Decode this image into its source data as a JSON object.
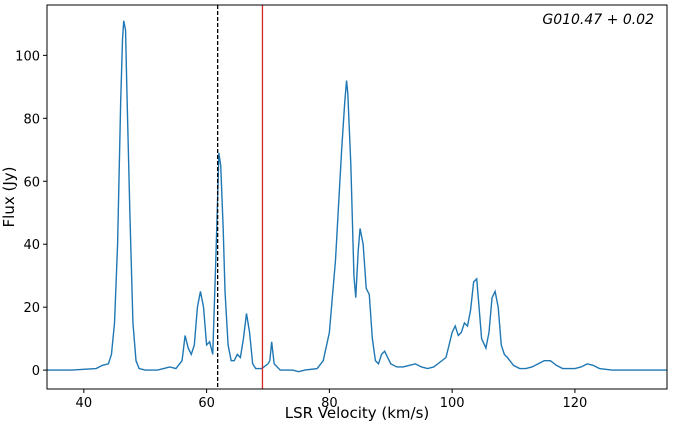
{
  "chart_data": {
    "type": "line",
    "xlabel": "LSR Velocity (km/s)",
    "ylabel": "Flux (Jy)",
    "annotation": "G010.47 + 0.02",
    "xlim": [
      34,
      135
    ],
    "ylim": [
      -6,
      116
    ],
    "xticks": [
      40,
      60,
      80,
      100,
      120
    ],
    "yticks": [
      0,
      20,
      40,
      60,
      80,
      100
    ],
    "grid": false,
    "vlines": [
      {
        "x": 61.8,
        "color": "#000000",
        "dash": true
      },
      {
        "x": 69.1,
        "color": "#d62728",
        "dash": false
      }
    ],
    "series": [
      {
        "color": "#1f77b4",
        "x": [
          34,
          38,
          42,
          43,
          44,
          44.5,
          45,
          45.5,
          46,
          46.3,
          46.5,
          46.8,
          47,
          47.5,
          48,
          48.5,
          49,
          50,
          52,
          53,
          54,
          55,
          56,
          56.5,
          57,
          57.5,
          58,
          58.5,
          59,
          59.5,
          60,
          60.5,
          61,
          61.5,
          61.8,
          62,
          62.3,
          62.7,
          63,
          63.5,
          64,
          64.5,
          65,
          65.5,
          66,
          66.5,
          67,
          67.5,
          68,
          69,
          70,
          70.3,
          70.6,
          71,
          72,
          74,
          75,
          76,
          78,
          79,
          80,
          81,
          82,
          82.5,
          82.8,
          83,
          83.5,
          84,
          84.3,
          84.7,
          85,
          85.5,
          86,
          86.5,
          87,
          87.5,
          88,
          88.5,
          89,
          89.5,
          90,
          91,
          92,
          93,
          94,
          95,
          96,
          97,
          98,
          99,
          100,
          100.5,
          101,
          101.5,
          102,
          102.5,
          103,
          103.5,
          104,
          104.3,
          104.8,
          105.5,
          106,
          106.5,
          107,
          107.5,
          108,
          108.5,
          109,
          110,
          111,
          112,
          113,
          114,
          115,
          116,
          117,
          118,
          119,
          120,
          121,
          122,
          123,
          124,
          126,
          130,
          135
        ],
        "values": [
          0,
          0,
          0.5,
          1.5,
          2,
          5,
          15,
          40,
          85,
          105,
          111,
          108,
          90,
          50,
          15,
          3,
          0.5,
          0,
          0,
          0.5,
          1,
          0.5,
          3,
          11,
          7,
          5,
          8,
          20,
          25,
          20,
          8,
          9,
          5,
          35,
          55,
          69,
          65,
          45,
          25,
          8,
          3,
          3,
          5,
          4,
          10,
          18,
          12,
          2,
          0.5,
          0.5,
          2,
          3,
          9,
          2,
          0,
          0,
          -0.5,
          0,
          0.5,
          3,
          12,
          35,
          70,
          85,
          92,
          88,
          65,
          30,
          23,
          38,
          45,
          40,
          26,
          24,
          10,
          3,
          2,
          5,
          6,
          4,
          2,
          1,
          1,
          1.5,
          2,
          1,
          0.5,
          1,
          2.5,
          4,
          12,
          14,
          11,
          12,
          15,
          14,
          19,
          28,
          29,
          22,
          10,
          7,
          12,
          23,
          25,
          20,
          8,
          5,
          4,
          1.5,
          0.5,
          0.5,
          1,
          2,
          3,
          3,
          1.5,
          0.5,
          0.5,
          0.5,
          1,
          2,
          1.5,
          0.5,
          0,
          0,
          0
        ]
      }
    ]
  }
}
